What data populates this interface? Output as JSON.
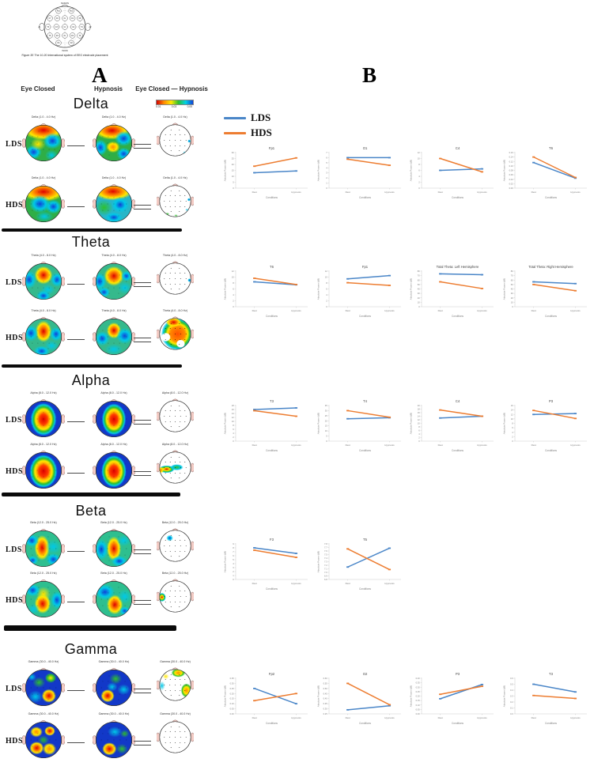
{
  "panel_a": {
    "label": "A",
    "column_headers": [
      "Eye Closed",
      "Hypnosis",
      "Eye Closed — Hypnosis"
    ],
    "colorbar": {
      "tick_labels": [
        "0.01",
        "0.03",
        "0.05"
      ],
      "colors": [
        "#d40000",
        "#ff8a00",
        "#ffe800",
        "#2ec02e",
        "#00d2e8",
        "#1040d8"
      ]
    },
    "sections": [
      {
        "band": "Delta",
        "rows": [
          {
            "label": "LDS",
            "maps": [
              {
                "title": "Delta (1.0 - 4.0 Hz)",
                "pattern": "delta_ec_lds"
              },
              {
                "title": "Delta (1.0 - 4.0 Hz)",
                "pattern": "delta_hyp_lds"
              },
              {
                "title": "Delta (1.0 - 4.0 Hz)",
                "pattern": "diff_delta_lds"
              }
            ]
          },
          {
            "label": "HDS",
            "maps": [
              {
                "title": "Delta (1.0 - 4.0 Hz)",
                "pattern": "delta_ec_hds"
              },
              {
                "title": "Delta (1.0 - 4.0 Hz)",
                "pattern": "delta_hyp_hds"
              },
              {
                "title": "Delta (1.0 - 4.0 Hz)",
                "pattern": "diff_delta_hds"
              }
            ]
          }
        ]
      },
      {
        "band": "Theta",
        "rows": [
          {
            "label": "LDS",
            "maps": [
              {
                "title": "Theta (4.0 - 8.0 Hz)",
                "pattern": "theta_ec_lds"
              },
              {
                "title": "Theta (4.0 - 8.0 Hz)",
                "pattern": "theta_hyp_lds"
              },
              {
                "title": "Theta (4.0 - 8.0 Hz)",
                "pattern": "diff_theta_lds"
              }
            ]
          },
          {
            "label": "HDS",
            "maps": [
              {
                "title": "Theta (4.0 - 8.0 Hz)",
                "pattern": "theta_ec_hds"
              },
              {
                "title": "Theta (4.0 - 8.0 Hz)",
                "pattern": "theta_hyp_hds"
              },
              {
                "title": "Theta (4.0 - 8.0 Hz)",
                "pattern": "diff_theta_hds"
              }
            ]
          }
        ]
      },
      {
        "band": "Alpha",
        "rows": [
          {
            "label": "LDS",
            "maps": [
              {
                "title": "Alpha (8.0 - 12.0 Hz)",
                "pattern": "alpha_ec_lds"
              },
              {
                "title": "Alpha (8.0 - 12.0 Hz)",
                "pattern": "alpha_hyp_lds"
              },
              {
                "title": "Alpha (8.0 - 12.0 Hz)",
                "pattern": "diff_blank"
              }
            ]
          },
          {
            "label": "HDS",
            "maps": [
              {
                "title": "Alpha (8.0 - 12.0 Hz)",
                "pattern": "alpha_ec_hds"
              },
              {
                "title": "Alpha (8.0 - 12.0 Hz)",
                "pattern": "alpha_hyp_hds"
              },
              {
                "title": "Alpha (8.0 - 12.0 Hz)",
                "pattern": "diff_alpha_hds"
              }
            ]
          }
        ]
      },
      {
        "band": "Beta",
        "rows": [
          {
            "label": "LDS",
            "maps": [
              {
                "title": "Beta (12.0 - 25.0 Hz)",
                "pattern": "beta_ec_lds"
              },
              {
                "title": "Beta (12.0 - 25.0 Hz)",
                "pattern": "beta_hyp_lds"
              },
              {
                "title": "Beta (12.0 - 25.0 Hz)",
                "pattern": "diff_beta_lds"
              }
            ]
          },
          {
            "label": "HDS",
            "maps": [
              {
                "title": "Beta (12.0 - 25.0 Hz)",
                "pattern": "beta_ec_hds"
              },
              {
                "title": "Beta (12.0 - 25.0 Hz)",
                "pattern": "beta_hyp_hds"
              },
              {
                "title": "Beta (12.0 - 25.0 Hz)",
                "pattern": "diff_beta_hds"
              }
            ]
          }
        ]
      },
      {
        "band": "Gamma",
        "rows": [
          {
            "label": "LDS",
            "maps": [
              {
                "title": "Gamma (30.0 - 40.0 Hz)",
                "pattern": "gamma_ec_lds"
              },
              {
                "title": "Gamma (30.0 - 40.0 Hz)",
                "pattern": "gamma_hyp_lds"
              },
              {
                "title": "Gamma (30.0 - 40.0 Hz)",
                "pattern": "diff_gamma_lds"
              }
            ]
          },
          {
            "label": "HDS",
            "maps": [
              {
                "title": "Gamma (30.0 - 40.0 Hz)",
                "pattern": "gamma_ec_hds"
              },
              {
                "title": "Gamma (30.0 - 40.0 Hz)",
                "pattern": "gamma_hyp_hds"
              },
              {
                "title": "Gamma (30.0 - 40.0 Hz)",
                "pattern": "diff_blank"
              }
            ]
          }
        ]
      }
    ]
  },
  "panel_b": {
    "label": "B",
    "legend": [
      {
        "label": "LDS",
        "color": "#4a86c8"
      },
      {
        "label": "HDS",
        "color": "#ED7D31"
      }
    ]
  },
  "chart_data": {
    "type": "line",
    "x_categories": [
      "Rest",
      "Hypnosis"
    ],
    "xlabel": "Conditions",
    "ylabel": "Absolute Power (dB)",
    "series_names": [
      "LDS",
      "HDS"
    ],
    "legend_position": "top-left",
    "rows": [
      {
        "band": "Delta",
        "plots": [
          {
            "title": "Fp1",
            "yticks": [
              0,
              5,
              10,
              15,
              20,
              25,
              30
            ],
            "LDS": [
              13,
              14.5
            ],
            "HDS": [
              18.5,
              25.5
            ]
          },
          {
            "title": "O1",
            "yticks": [
              0,
              1,
              2,
              3,
              4,
              5,
              6,
              7
            ],
            "LDS": [
              6,
              6
            ],
            "HDS": [
              5.7,
              4.5
            ]
          },
          {
            "title": "C4",
            "yticks": [
              0,
              2,
              4,
              6,
              8,
              10,
              12
            ],
            "LDS": [
              6,
              6.5
            ],
            "HDS": [
              10,
              5.5
            ]
          },
          {
            "title": "T6",
            "yticks": [
              0,
              0.02,
              0.04,
              0.06,
              0.08,
              0.1,
              0.12,
              0.14,
              0.16
            ],
            "LDS": [
              0.115,
              0.045
            ],
            "HDS": [
              0.14,
              0.048
            ]
          }
        ]
      },
      {
        "band": "Theta",
        "plots": [
          {
            "title": "T6",
            "yticks": [
              0,
              2,
              4,
              6,
              8,
              10,
              12
            ],
            "LDS": [
              8.4,
              7.4
            ],
            "HDS": [
              9.6,
              7.5
            ]
          },
          {
            "title": "Fp1",
            "yticks": [
              0,
              2,
              4,
              6,
              8,
              10,
              12
            ],
            "LDS": [
              9.4,
              10.5
            ],
            "HDS": [
              8.1,
              7.2
            ]
          },
          {
            "title": "Total Theta: Left Hemisphere",
            "yticks": [
              0,
              10,
              20,
              30,
              40,
              50,
              60,
              70,
              80
            ],
            "LDS": [
              74,
              72
            ],
            "HDS": [
              56,
              41
            ]
          },
          {
            "title": "Total Theta: Right Hemisphere",
            "yticks": [
              0,
              10,
              20,
              30,
              40,
              50,
              60,
              70,
              80
            ],
            "LDS": [
              56,
              52
            ],
            "HDS": [
              50,
              36
            ]
          }
        ]
      },
      {
        "band": "Alpha",
        "plots": [
          {
            "title": "T3",
            "yticks": [
              0,
              2,
              4,
              6,
              8,
              10,
              12,
              14,
              16,
              18
            ],
            "LDS": [
              16,
              16.8
            ],
            "HDS": [
              15.4,
              12.6
            ]
          },
          {
            "title": "T4",
            "yticks": [
              0,
              5,
              10,
              15,
              20,
              25,
              30,
              35
            ],
            "LDS": [
              22,
              23
            ],
            "HDS": [
              30,
              23.5
            ]
          },
          {
            "title": "C4",
            "yticks": [
              0,
              2,
              4,
              6,
              8,
              10,
              12,
              14,
              16,
              18,
              20
            ],
            "LDS": [
              13,
              14
            ],
            "HDS": [
              17.5,
              14
            ]
          },
          {
            "title": "P3",
            "yticks": [
              0,
              2,
              4,
              6,
              8,
              10,
              12,
              14,
              16
            ],
            "LDS": [
              12,
              12.4
            ],
            "HDS": [
              13.8,
              10.2
            ]
          }
        ]
      },
      {
        "band": "Beta",
        "plots": [
          {
            "title": "F3",
            "yticks": [
              0,
              1,
              2,
              3,
              4,
              5,
              6,
              7,
              8,
              9
            ],
            "LDS": [
              8,
              6.6
            ],
            "HDS": [
              7.4,
              5.6
            ]
          },
          {
            "title": "T5",
            "yticks": [
              6.8,
              6.9,
              7.0,
              7.1,
              7.2,
              7.3,
              7.4,
              7.5,
              7.6,
              7.7,
              7.8
            ],
            "LDS": [
              7.15,
              7.68
            ],
            "HDS": [
              7.66,
              7.08
            ]
          }
        ]
      },
      {
        "band": "Gamma",
        "plots": [
          {
            "title": "Fp2",
            "yticks": [
              0,
              0.05,
              0.1,
              0.15,
              0.2,
              0.25,
              0.3,
              0.35
            ],
            "LDS": [
              0.25,
              0.1
            ],
            "HDS": [
              0.13,
              0.2
            ]
          },
          {
            "title": "O2",
            "yticks": [
              0.25,
              0.3,
              0.35,
              0.4,
              0.45,
              0.5,
              0.55,
              0.6
            ],
            "LDS": [
              0.29,
              0.33
            ],
            "HDS": [
              0.55,
              0.34
            ]
          },
          {
            "title": "P3",
            "yticks": [
              0,
              0.05,
              0.1,
              0.15,
              0.2,
              0.25,
              0.3,
              0.35,
              0.4
            ],
            "LDS": [
              0.17,
              0.33
            ],
            "HDS": [
              0.22,
              0.31
            ]
          },
          {
            "title": "T3",
            "yticks": [
              0,
              0.1,
              0.2,
              0.3,
              0.4,
              0.5,
              0.6
            ],
            "LDS": [
              0.5,
              0.37
            ],
            "HDS": [
              0.31,
              0.26
            ]
          }
        ]
      }
    ]
  },
  "electrode_diagram": {
    "caption": "Figure 2E The 10-20 International system of EEG electrode placement",
    "nasion_label": "NASION",
    "inion_label": "INION",
    "electrodes": [
      "Fp1",
      "Fp2",
      "F7",
      "F3",
      "Fz",
      "F4",
      "F8",
      "A1",
      "T3",
      "C3",
      "Cz",
      "C4",
      "T4",
      "A2",
      "T5",
      "P3",
      "Pz",
      "P4",
      "T6",
      "O1",
      "O2"
    ]
  }
}
